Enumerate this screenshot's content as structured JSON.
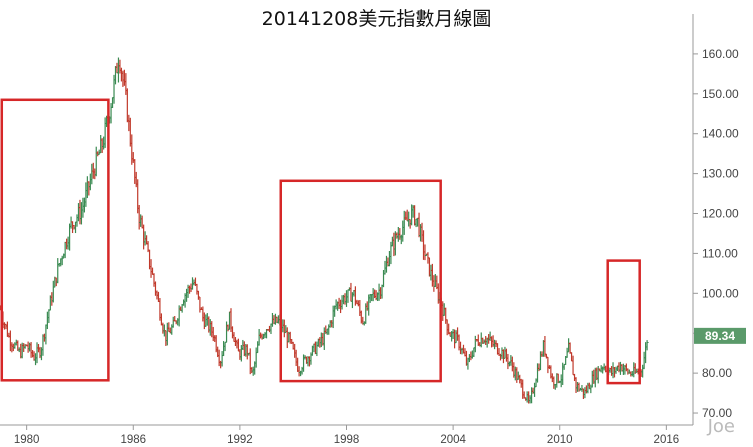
{
  "title": "20141208美元指數月線圖",
  "watermark": "Joe",
  "chart_data": {
    "type": "ohlc",
    "title": "20141208美元指數月線圖",
    "ylim": [
      67,
      170
    ],
    "xlim": [
      1978.5,
      2017.5
    ],
    "y_ticks": [
      "70.00",
      "80.00",
      "90.00",
      "100.00",
      "110.00",
      "120.00",
      "130.00",
      "140.00",
      "150.00",
      "160.00"
    ],
    "x_ticks": [
      "1980",
      "1986",
      "1992",
      "1998",
      "2004",
      "2010",
      "2016"
    ],
    "last_price": "89.34",
    "colors": {
      "up": "#3a8a52",
      "down": "#c0392b",
      "price_label_bg": "#5a9a6a",
      "box": "#d62728"
    },
    "series": [
      {
        "values": [
          [
            1978.5,
            96
          ],
          [
            1979.0,
            89
          ],
          [
            1979.6,
            85
          ],
          [
            1980.0,
            87
          ],
          [
            1980.4,
            84
          ],
          [
            1980.8,
            86
          ],
          [
            1981.3,
            97
          ],
          [
            1981.8,
            107
          ],
          [
            1982.5,
            117
          ],
          [
            1983.1,
            121
          ],
          [
            1983.7,
            130
          ],
          [
            1984.3,
            138
          ],
          [
            1984.8,
            149
          ],
          [
            1985.2,
            160
          ],
          [
            1985.6,
            148
          ],
          [
            1985.9,
            136
          ],
          [
            1986.3,
            120
          ],
          [
            1986.8,
            110
          ],
          [
            1987.3,
            100
          ],
          [
            1987.8,
            89
          ],
          [
            1988.3,
            92
          ],
          [
            1988.8,
            99
          ],
          [
            1989.4,
            103
          ],
          [
            1989.9,
            94
          ],
          [
            1990.5,
            90
          ],
          [
            1990.9,
            83
          ],
          [
            1991.4,
            94
          ],
          [
            1991.9,
            85
          ],
          [
            1992.4,
            86
          ],
          [
            1992.7,
            79
          ],
          [
            1993.1,
            89
          ],
          [
            1993.6,
            92
          ],
          [
            1994.2,
            93
          ],
          [
            1994.8,
            88
          ],
          [
            1995.3,
            81
          ],
          [
            1995.8,
            84
          ],
          [
            1996.4,
            87
          ],
          [
            1996.9,
            90
          ],
          [
            1997.4,
            97
          ],
          [
            1997.9,
            99
          ],
          [
            1998.4,
            100
          ],
          [
            1998.9,
            93
          ],
          [
            1999.4,
            99
          ],
          [
            1999.9,
            101
          ],
          [
            2000.4,
            110
          ],
          [
            2000.9,
            115
          ],
          [
            2001.4,
            118
          ],
          [
            2001.7,
            120
          ],
          [
            2002.0,
            118
          ],
          [
            2002.4,
            110
          ],
          [
            2002.8,
            104
          ],
          [
            2003.3,
            98
          ],
          [
            2003.8,
            90
          ],
          [
            2004.3,
            88
          ],
          [
            2004.8,
            82
          ],
          [
            2005.3,
            88
          ],
          [
            2005.8,
            89
          ],
          [
            2006.3,
            87
          ],
          [
            2006.8,
            85
          ],
          [
            2007.3,
            82
          ],
          [
            2007.8,
            77
          ],
          [
            2008.3,
            72
          ],
          [
            2008.7,
            80
          ],
          [
            2009.1,
            87
          ],
          [
            2009.6,
            78
          ],
          [
            2010.1,
            79
          ],
          [
            2010.5,
            86
          ],
          [
            2010.9,
            77
          ],
          [
            2011.4,
            75
          ],
          [
            2011.9,
            79
          ],
          [
            2012.4,
            82
          ],
          [
            2012.9,
            80
          ],
          [
            2013.4,
            82
          ],
          [
            2013.9,
            80
          ],
          [
            2014.3,
            80
          ],
          [
            2014.6,
            81
          ],
          [
            2014.8,
            85
          ],
          [
            2014.95,
            89.34
          ]
        ]
      }
    ],
    "annotations": [
      {
        "type": "box",
        "x": [
          1978.6,
          1984.6
        ],
        "y": [
          78.2,
          148.5
        ]
      },
      {
        "type": "box",
        "x": [
          1994.3,
          2003.3
        ],
        "y": [
          78.0,
          128.2
        ]
      },
      {
        "type": "box",
        "x": [
          2012.7,
          2014.5
        ],
        "y": [
          77.5,
          108.2
        ]
      }
    ]
  }
}
